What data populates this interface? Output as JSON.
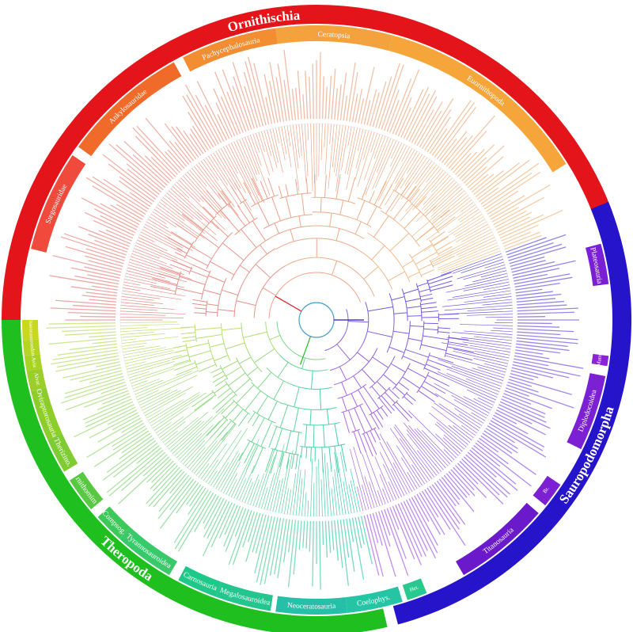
{
  "figure": {
    "major_clades": [
      {
        "name": "Ornithischia",
        "color": "#e3151b",
        "start": 270,
        "end": 70
      },
      {
        "name": "Sauropodomorpha",
        "color": "#2514c9",
        "start": 68,
        "end": 165
      },
      {
        "name": "Theropoda",
        "color": "#1fbf1f",
        "start": 167,
        "end": 270
      }
    ],
    "inner_clades": [
      {
        "name": "Stegosauridae",
        "color": "#f04a3d",
        "start": 284,
        "end": 304
      },
      {
        "name": "Ankylosauridae",
        "color": "#f06a2a",
        "start": 306,
        "end": 331
      },
      {
        "name": "Pachycephalosauria",
        "color": "#f38d31",
        "start": 333,
        "end": 352
      },
      {
        "name": "Ceratopsia",
        "color": "#f4a23e",
        "start": 352,
        "end": 15
      },
      {
        "name": "Euornithopoda",
        "color": "#f5a53a",
        "start": 15,
        "end": 58
      },
      {
        "name": "Plateosauria",
        "color": "#7a1fd6",
        "start": 75,
        "end": 83
      },
      {
        "name": "Mam.",
        "color": "#8a22d8",
        "start": 97,
        "end": 99
      },
      {
        "name": "Diplodocoidea",
        "color": "#7b20d3",
        "start": 101,
        "end": 116
      },
      {
        "name": "Br.",
        "color": "#7c20d4",
        "start": 124,
        "end": 129
      },
      {
        "name": "Titanosauria",
        "color": "#6a1acb",
        "start": 131,
        "end": 150
      },
      {
        "name": "Het.",
        "color": "#28c98f",
        "start": 158,
        "end": 162
      },
      {
        "name": "Coelophys.",
        "color": "#25c4a4",
        "start": 163,
        "end": 174
      },
      {
        "name": "Neoceratosauria",
        "color": "#26bfa8",
        "start": 174,
        "end": 188
      },
      {
        "name": "Megalosauroidea",
        "color": "#22c68e",
        "start": 189,
        "end": 200
      },
      {
        "name": "Carnosauria",
        "color": "#1ec889",
        "start": 200,
        "end": 208
      },
      {
        "name": "Tyrannosauroidea",
        "color": "#38c96a",
        "start": 210,
        "end": 222
      },
      {
        "name": "Compsog.",
        "color": "#3dc85a",
        "start": 222,
        "end": 228
      },
      {
        "name": "Ornithomimo.",
        "color": "#57c841",
        "start": 230,
        "end": 237
      },
      {
        "name": "Therizino.",
        "color": "#7ecb32",
        "start": 239,
        "end": 246
      },
      {
        "name": "Oviraptorosauria",
        "color": "#8ccd2a",
        "start": 246,
        "end": 256
      },
      {
        "name": "Alvar.",
        "color": "#9bce28",
        "start": 256,
        "end": 260
      },
      {
        "name": "Avia",
        "color": "#a9d226",
        "start": 260,
        "end": 263
      },
      {
        "name": "Troodon.",
        "color": "#b6d424",
        "start": 263,
        "end": 266
      },
      {
        "name": "Dromaeosauridae",
        "color": "#c7d81e",
        "start": 266,
        "end": 270
      }
    ],
    "branch_colors": {
      "ornithischia": "#e3151b",
      "sauropodomorpha": "#2514c9",
      "theropoda": "#1fbf1f"
    }
  }
}
